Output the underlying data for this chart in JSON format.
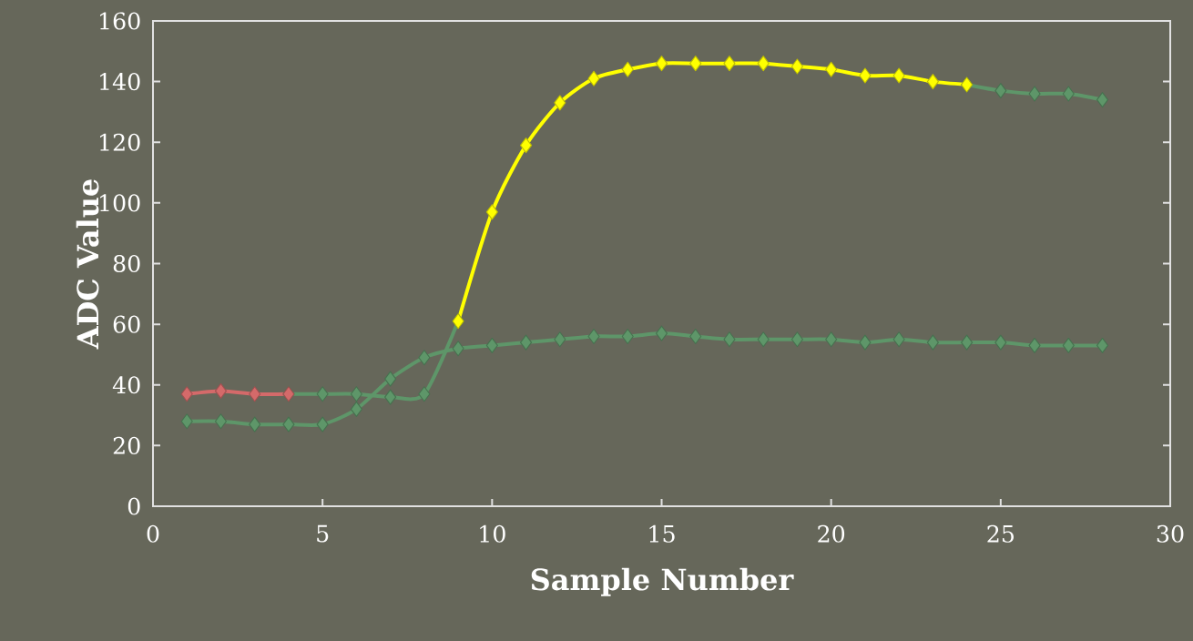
{
  "chart_data": {
    "type": "line",
    "xlabel": "Sample Number",
    "ylabel": "ADC Value",
    "xlim": [
      0,
      30
    ],
    "xticks": [
      0,
      5,
      10,
      15,
      20,
      25,
      30
    ],
    "ylim": [
      0,
      160
    ],
    "yticks": [
      0,
      20,
      40,
      60,
      80,
      100,
      120,
      140,
      160
    ],
    "marker": "diamond",
    "line_style": "solid",
    "series": [
      {
        "color": "#5e9669",
        "x": [
          1,
          2,
          3,
          4,
          5,
          6,
          7,
          8,
          9,
          10,
          11,
          12,
          13,
          14,
          15,
          16,
          17,
          18,
          19,
          20,
          21,
          22,
          23,
          24,
          25,
          26,
          27,
          28
        ],
        "values": [
          28,
          28,
          27,
          27,
          27,
          32,
          42,
          49,
          52,
          53,
          54,
          55,
          56,
          56,
          57,
          56,
          55,
          55,
          55,
          55,
          54,
          55,
          54,
          54,
          54,
          53,
          53,
          53
        ]
      },
      {
        "color": "#5e9669",
        "x": [
          4,
          5,
          6,
          7,
          8,
          9
        ],
        "values": [
          37,
          37,
          37,
          36,
          37,
          61
        ]
      },
      {
        "color": "#5e9669",
        "x": [
          24,
          25,
          26,
          27,
          28
        ],
        "values": [
          139,
          137,
          136,
          136,
          134
        ]
      },
      {
        "color": "#d46a6a",
        "x": [
          1,
          2,
          3,
          4
        ],
        "values": [
          37,
          38,
          37,
          37
        ]
      },
      {
        "color": "#ffff00",
        "x": [
          9,
          10,
          11,
          12,
          13,
          14,
          15,
          16,
          17,
          18,
          19,
          20,
          21,
          22,
          23,
          24
        ],
        "values": [
          61,
          97,
          119,
          133,
          141,
          144,
          146,
          146,
          146,
          146,
          145,
          144,
          142,
          142,
          140,
          139
        ]
      }
    ]
  }
}
